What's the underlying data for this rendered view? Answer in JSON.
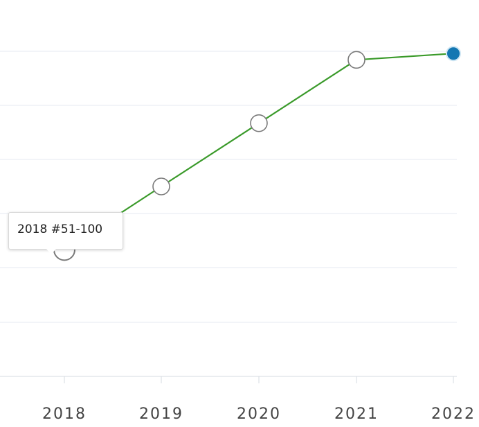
{
  "chart_data": {
    "type": "line",
    "x": [
      "2018",
      "2019",
      "2020",
      "2021",
      "2022"
    ],
    "series": [
      {
        "values": [
          1,
          2,
          3,
          4,
          4.1
        ]
      }
    ],
    "ylim": [
      -1,
      5
    ],
    "grid": true,
    "colors": {
      "line": "#3a9a2a",
      "marker_fill": "#ffffff",
      "marker_stroke": "#7a7a7a",
      "highlight_fill": "#1477b2",
      "grid": "#e6eaf0",
      "tick_label": "#444444"
    },
    "tooltip": {
      "text": "2018 #51-100"
    }
  }
}
